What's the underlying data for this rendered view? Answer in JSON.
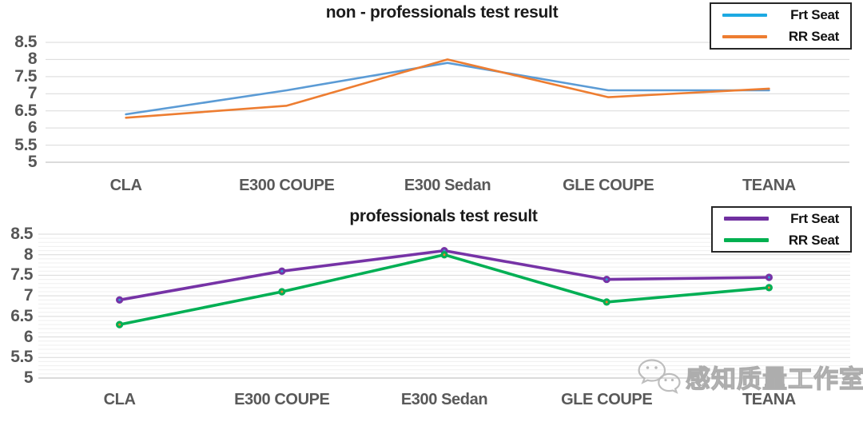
{
  "page": {
    "background": "#ffffff"
  },
  "watermark": {
    "text": "感知质量工作室",
    "icon": "wechat-logo"
  },
  "chart_data": [
    {
      "type": "line",
      "title": "non - professionals test result",
      "categories": [
        "CLA",
        "E300 COUPE",
        "E300 Sedan",
        "GLE COUPE",
        "TEANA"
      ],
      "series": [
        {
          "name": "Frt Seat",
          "values": [
            6.4,
            7.1,
            7.9,
            7.1,
            7.1
          ],
          "color": "#5B9BD5",
          "legend_color": "#1CA9E2",
          "markers": false
        },
        {
          "name": "RR Seat",
          "values": [
            6.3,
            6.65,
            8.0,
            6.9,
            7.15
          ],
          "color": "#ED7D31",
          "legend_color": "#ED7D31",
          "markers": false
        }
      ],
      "ylim": [
        5,
        8.5
      ],
      "ytick_step": 0.5,
      "minor_gridlines": false,
      "minor_step": 0.1,
      "grid": true,
      "legend_position": "top-right",
      "gridline_color": "#d9d9d9",
      "axis_label_color": "#575757"
    },
    {
      "type": "line",
      "title": "professionals test result",
      "categories": [
        "CLA",
        "E300 COUPE",
        "E300 Sedan",
        "GLE COUPE",
        "TEANA"
      ],
      "series": [
        {
          "name": "Frt Seat",
          "values": [
            6.9,
            7.6,
            8.1,
            7.4,
            7.45
          ],
          "color": "#7633A6",
          "legend_color": "#7030A0",
          "markers": true,
          "marker_center_color": "#2E9BD6"
        },
        {
          "name": "RR Seat",
          "values": [
            6.3,
            7.1,
            8.0,
            6.85,
            7.2
          ],
          "color": "#00AF54",
          "legend_color": "#00B050",
          "markers": true,
          "marker_center_color": "#ED7D31"
        }
      ],
      "ylim": [
        5,
        8.5
      ],
      "ytick_step": 0.5,
      "minor_gridlines": true,
      "minor_step": 0.1,
      "grid": true,
      "legend_position": "top-right",
      "gridline_color": "#d9d9d9",
      "minor_gridline_color": "#efefef",
      "axis_label_color": "#575757"
    }
  ]
}
